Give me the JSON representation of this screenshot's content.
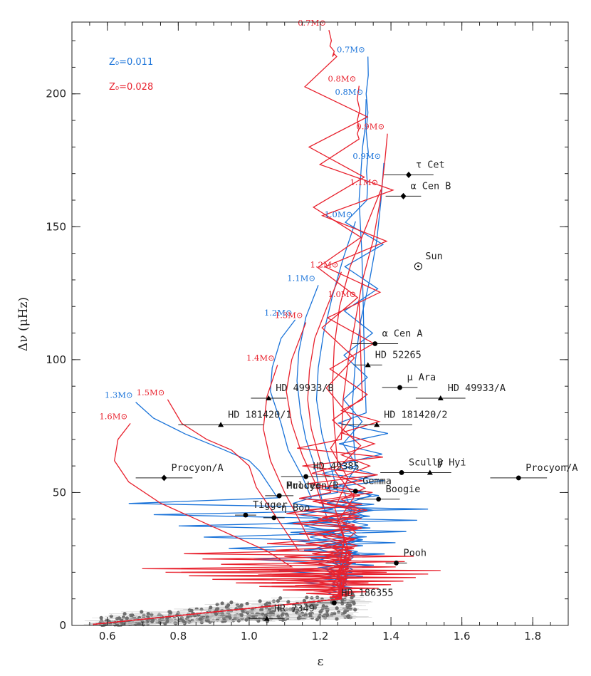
{
  "chart_data": {
    "type": "line",
    "xlabel": "ε",
    "ylabel": "Δν (μHz)",
    "xlim": [
      0.5,
      1.9
    ],
    "ylim": [
      0,
      227
    ],
    "xticks": [
      "0.6",
      "0.8",
      "1.0",
      "1.2",
      "1.4",
      "1.6",
      "1.8"
    ],
    "yticks": [
      "0",
      "50",
      "100",
      "150",
      "200"
    ],
    "grid": false,
    "colors": {
      "blue": "#1a73d9",
      "red": "#e8212d",
      "grey": "#6e6e6e",
      "errorbar_grey": "#cccccc"
    },
    "legend": [
      {
        "label": "Z₀=0.011",
        "color": "#1a73d9"
      },
      {
        "label": "Z₀=0.028",
        "color": "#e8212d"
      }
    ],
    "series": [
      {
        "name": "0.7M⊙",
        "metallicity": "blue",
        "x": [
          1.335,
          1.336,
          1.33,
          1.335,
          1.33,
          1.336,
          1.331,
          1.334,
          1.332
        ],
        "y": [
          214,
          207,
          200,
          193,
          186,
          178,
          171,
          165,
          160
        ]
      },
      {
        "name": "0.8M⊙",
        "metallicity": "blue",
        "x": [
          1.33,
          1.328,
          1.32,
          1.315,
          1.31,
          1.318,
          1.322,
          1.325,
          1.33
        ],
        "y": [
          198,
          188,
          180,
          170,
          160,
          140,
          120,
          100,
          80
        ]
      },
      {
        "name": "0.9M⊙",
        "metallicity": "blue",
        "x": [
          1.38,
          1.372,
          1.36,
          1.34,
          1.315,
          1.3,
          1.292,
          1.295,
          1.3
        ],
        "y": [
          174,
          160,
          145,
          130,
          115,
          100,
          85,
          70,
          60
        ]
      },
      {
        "name": "1.0M⊙",
        "metallicity": "blue",
        "x": [
          1.3,
          1.265,
          1.235,
          1.21,
          1.195,
          1.19,
          1.205,
          1.23,
          1.25
        ],
        "y": [
          152,
          138,
          124,
          110,
          97,
          85,
          72,
          60,
          50
        ]
      },
      {
        "name": "1.1M⊙",
        "metallicity": "blue",
        "x": [
          1.195,
          1.16,
          1.14,
          1.135,
          1.145,
          1.16,
          1.185,
          1.2,
          1.22
        ],
        "y": [
          128,
          116,
          103,
          92,
          80,
          70,
          60,
          50,
          40
        ]
      },
      {
        "name": "1.2M⊙",
        "metallicity": "blue",
        "x": [
          1.13,
          1.09,
          1.065,
          1.06,
          1.09,
          1.11,
          1.15,
          1.175
        ],
        "y": [
          115,
          108,
          97,
          88,
          76,
          66,
          56,
          48
        ]
      },
      {
        "name": "1.3M⊙",
        "metallicity": "blue",
        "x": [
          0.68,
          0.73,
          0.82,
          0.93,
          1.0,
          1.03,
          1.05,
          1.08
        ],
        "y": [
          84,
          78,
          72,
          66,
          62,
          58,
          54,
          48
        ]
      },
      {
        "name": "0.7M⊙",
        "metallicity": "red",
        "x": [
          1.225,
          1.232,
          1.228,
          1.24,
          1.235,
          1.24,
          1.247
        ],
        "y": [
          224,
          220,
          218,
          216,
          214,
          215,
          214
        ]
      },
      {
        "name": "0.8M⊙",
        "metallicity": "red",
        "x": [
          1.31,
          1.305,
          1.312,
          1.305,
          1.31,
          1.305,
          1.31
        ],
        "y": [
          203,
          198,
          194,
          190,
          187,
          185,
          183
        ]
      },
      {
        "name": "0.9M⊙",
        "metallicity": "red",
        "x": [
          1.39,
          1.383,
          1.37,
          1.35,
          1.32,
          1.3,
          1.28,
          1.265,
          1.26
        ],
        "y": [
          185,
          175,
          160,
          145,
          130,
          115,
          100,
          85,
          70
        ]
      },
      {
        "name": "1.0M⊙",
        "metallicity": "red",
        "x": [
          1.31,
          1.313,
          1.315,
          1.318,
          1.32
        ],
        "y": [
          122,
          110,
          100,
          90,
          85
        ]
      },
      {
        "name": "1.1M⊙",
        "metallicity": "red",
        "x": [
          1.372,
          1.33,
          1.285,
          1.255,
          1.24,
          1.235,
          1.24,
          1.25
        ],
        "y": [
          164,
          150,
          135,
          120,
          105,
          90,
          75,
          60
        ]
      },
      {
        "name": "1.2M⊙",
        "metallicity": "red",
        "x": [
          1.26,
          1.22,
          1.185,
          1.17,
          1.165,
          1.175,
          1.2,
          1.23
        ],
        "y": [
          133,
          120,
          108,
          96,
          85,
          74,
          62,
          50
        ]
      },
      {
        "name": "1.3M⊙",
        "metallicity": "red",
        "x": [
          1.16,
          1.12,
          1.105,
          1.12,
          1.15,
          1.185,
          1.21
        ],
        "y": [
          114,
          100,
          88,
          76,
          64,
          54,
          44
        ]
      },
      {
        "name": "1.4M⊙",
        "metallicity": "red",
        "x": [
          1.08,
          1.05,
          1.04,
          1.06,
          1.1,
          1.14,
          1.17
        ],
        "y": [
          98,
          86,
          74,
          62,
          50,
          40,
          32
        ]
      },
      {
        "name": "1.5M⊙",
        "metallicity": "red",
        "x": [
          0.77,
          0.81,
          0.88,
          0.95,
          1.0,
          1.02,
          1.06,
          1.1,
          1.14
        ],
        "y": [
          85,
          76,
          70,
          66,
          60,
          52,
          44,
          36,
          28
        ]
      },
      {
        "name": "1.6M⊙",
        "metallicity": "red",
        "x": [
          0.665,
          0.63,
          0.62,
          0.66,
          0.75,
          0.85,
          0.95,
          1.05,
          1.12
        ],
        "y": [
          76,
          70,
          62,
          54,
          46,
          40,
          34,
          28,
          22
        ]
      }
    ],
    "stars": [
      {
        "name": "τ Cet",
        "x": 1.45,
        "y": 169.5,
        "marker": "diamond",
        "xerr": 0.07
      },
      {
        "name": "α Cen B",
        "x": 1.435,
        "y": 161.5,
        "marker": "diamond",
        "xerr": 0.05
      },
      {
        "name": "Sun",
        "x": 1.477,
        "y": 135.1,
        "marker": "sun",
        "xerr": 0
      },
      {
        "name": "α Cen A",
        "x": 1.355,
        "y": 106,
        "marker": "circle",
        "xerr": 0.065
      },
      {
        "name": "HD 52265",
        "x": 1.335,
        "y": 98,
        "marker": "triangle",
        "xerr": 0.04
      },
      {
        "name": "μ Ara",
        "x": 1.425,
        "y": 89.5,
        "marker": "circle",
        "xerr": 0.05
      },
      {
        "name": "HD 49933/A",
        "x": 1.54,
        "y": 85.5,
        "marker": "triangle",
        "xerr": 0.07
      },
      {
        "name": "HD 49933/B",
        "x": 1.055,
        "y": 85.5,
        "marker": "triangle",
        "xerr": 0.05
      },
      {
        "name": "HD 181420/1",
        "x": 0.92,
        "y": 75.5,
        "marker": "triangle",
        "xerr": 0.12
      },
      {
        "name": "HD 181420/2",
        "x": 1.36,
        "y": 75.5,
        "marker": "triangle",
        "xerr": 0.1
      },
      {
        "name": "Scully",
        "x": 1.43,
        "y": 57.5,
        "marker": "circle",
        "xerr": 0.06
      },
      {
        "name": "β Hyi",
        "x": 1.51,
        "y": 57.5,
        "marker": "triangle",
        "xerr": 0.06
      },
      {
        "name": "Procyon/A",
        "x": 0.76,
        "y": 55.5,
        "marker": "diamond",
        "xerr": 0.08
      },
      {
        "name": "Procyon/A",
        "x": 1.76,
        "y": 55.5,
        "marker": "circle",
        "xerr": 0.08
      },
      {
        "name": "HD 49385",
        "x": 1.16,
        "y": 56.0,
        "marker": "circle",
        "xerr": 0.07
      },
      {
        "name": "Procyon/B",
        "x": 1.085,
        "y": 48.8,
        "marker": "circle",
        "xerr": 0.04
      },
      {
        "name": "Gemma",
        "x": 1.3,
        "y": 50.5,
        "marker": "circle",
        "xerr": 0.03
      },
      {
        "name": "Boogie",
        "x": 1.365,
        "y": 47.5,
        "marker": "circle",
        "xerr": 0.06
      },
      {
        "name": "Mulder",
        "x": 1.085,
        "y": 48.8,
        "marker": "circle",
        "xerr": 0
      },
      {
        "name": "Tigger",
        "x": 0.99,
        "y": 41.5,
        "marker": "circle",
        "xerr": 0.03
      },
      {
        "name": "η Boo",
        "x": 1.07,
        "y": 40.5,
        "marker": "circle",
        "xerr": 0.03
      },
      {
        "name": "Pooh",
        "x": 1.415,
        "y": 23.5,
        "marker": "circle",
        "xerr": 0.03
      },
      {
        "name": "HD 186355",
        "x": 1.24,
        "y": 8.5,
        "marker": "circle",
        "xerr": 0.04
      },
      {
        "name": "HR 7349",
        "x": 1.05,
        "y": 2.5,
        "marker": "triangle",
        "xerr": 0.05
      }
    ]
  }
}
